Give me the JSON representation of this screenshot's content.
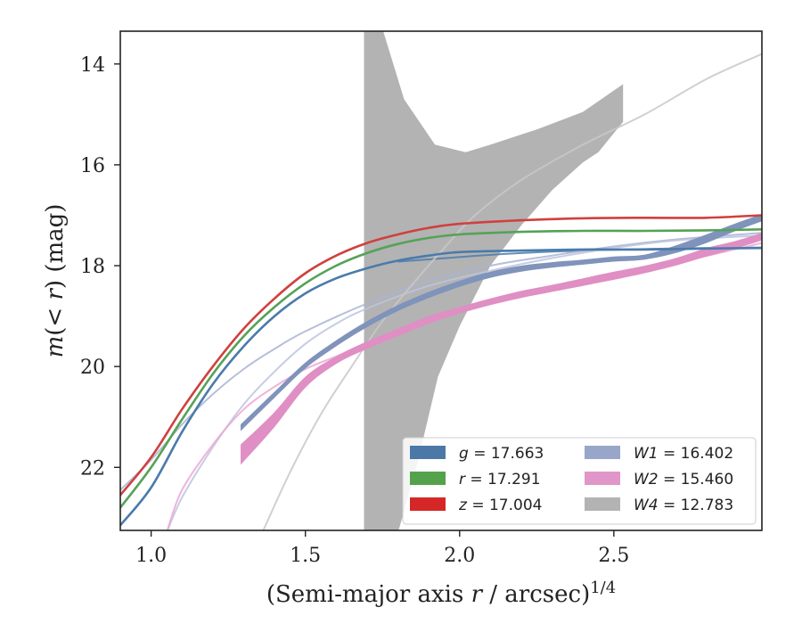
{
  "chart_data": {
    "type": "line",
    "xlabel": "(Semi-major axis r / arcsec)^{1/4}",
    "xlabel_parts": {
      "pre": "(Semi-major axis ",
      "var": "r",
      "mid": " / arcsec)",
      "sup": "1/4"
    },
    "ylabel": "m(< r) (mag)",
    "ylabel_parts": {
      "var": "m",
      "mid": "(< ",
      "var2": "r",
      "post": ") (mag)"
    },
    "xlim": [
      0.9,
      2.98
    ],
    "ylim": [
      23.25,
      13.35
    ],
    "y_inverted": true,
    "x_ticks": [
      1.0,
      1.5,
      2.0,
      2.5
    ],
    "x_tick_labels": [
      "1.0",
      "1.5",
      "2.0",
      "2.5"
    ],
    "y_ticks": [
      14,
      16,
      18,
      20,
      22
    ],
    "y_tick_labels": [
      "14",
      "16",
      "18",
      "20",
      "22"
    ],
    "grid": false,
    "legend_position": "lower-right",
    "legend": [
      {
        "band": "g",
        "value": "17.663",
        "color": "#4c78a8"
      },
      {
        "band": "r",
        "value": "17.291",
        "color": "#54a24b"
      },
      {
        "band": "z",
        "value": "17.004",
        "color": "#d62728"
      },
      {
        "band": "W1",
        "value": "16.402",
        "color": "#98a6c9"
      },
      {
        "band": "W2",
        "value": "15.460",
        "color": "#e096c8"
      },
      {
        "band": "W4",
        "value": "12.783",
        "color": "#b3b3b3"
      }
    ],
    "series": [
      {
        "name": "g",
        "color": "#4a7bab",
        "kind": "line",
        "points": [
          [
            0.9,
            23.15
          ],
          [
            1.0,
            22.4
          ],
          [
            1.1,
            21.3
          ],
          [
            1.2,
            20.35
          ],
          [
            1.3,
            19.6
          ],
          [
            1.4,
            19.0
          ],
          [
            1.5,
            18.55
          ],
          [
            1.6,
            18.25
          ],
          [
            1.7,
            18.05
          ],
          [
            1.8,
            17.9
          ],
          [
            1.9,
            17.8
          ],
          [
            2.0,
            17.73
          ],
          [
            2.2,
            17.7
          ],
          [
            2.4,
            17.68
          ],
          [
            2.6,
            17.68
          ],
          [
            2.8,
            17.66
          ],
          [
            2.98,
            17.65
          ]
        ]
      },
      {
        "name": "r",
        "color": "#55a257",
        "kind": "line",
        "points": [
          [
            0.9,
            22.8
          ],
          [
            1.0,
            22.0
          ],
          [
            1.1,
            21.05
          ],
          [
            1.2,
            20.15
          ],
          [
            1.3,
            19.4
          ],
          [
            1.4,
            18.82
          ],
          [
            1.5,
            18.35
          ],
          [
            1.6,
            18.0
          ],
          [
            1.7,
            17.75
          ],
          [
            1.8,
            17.57
          ],
          [
            1.9,
            17.45
          ],
          [
            2.0,
            17.38
          ],
          [
            2.2,
            17.33
          ],
          [
            2.4,
            17.31
          ],
          [
            2.6,
            17.31
          ],
          [
            2.8,
            17.3
          ],
          [
            2.98,
            17.28
          ]
        ]
      },
      {
        "name": "z",
        "color": "#d0403f",
        "kind": "line",
        "points": [
          [
            0.9,
            22.55
          ],
          [
            1.0,
            21.8
          ],
          [
            1.1,
            20.85
          ],
          [
            1.2,
            20.0
          ],
          [
            1.3,
            19.25
          ],
          [
            1.4,
            18.65
          ],
          [
            1.5,
            18.15
          ],
          [
            1.6,
            17.8
          ],
          [
            1.7,
            17.55
          ],
          [
            1.8,
            17.38
          ],
          [
            1.9,
            17.25
          ],
          [
            2.0,
            17.17
          ],
          [
            2.2,
            17.1
          ],
          [
            2.4,
            17.06
          ],
          [
            2.6,
            17.05
          ],
          [
            2.8,
            17.05
          ],
          [
            2.98,
            17.0
          ]
        ]
      },
      {
        "name": "W1",
        "color": "#7f93bb",
        "kind": "band",
        "lower": [
          [
            1.29,
            21.15
          ],
          [
            1.4,
            20.5
          ],
          [
            1.5,
            19.92
          ],
          [
            1.6,
            19.48
          ],
          [
            1.7,
            19.1
          ],
          [
            1.8,
            18.78
          ],
          [
            1.9,
            18.52
          ],
          [
            2.0,
            18.3
          ],
          [
            2.1,
            18.12
          ],
          [
            2.2,
            18.0
          ],
          [
            2.3,
            17.93
          ],
          [
            2.4,
            17.88
          ],
          [
            2.5,
            17.82
          ],
          [
            2.6,
            17.78
          ],
          [
            2.7,
            17.6
          ],
          [
            2.8,
            17.38
          ],
          [
            2.9,
            17.15
          ],
          [
            2.98,
            16.98
          ]
        ],
        "upper": [
          [
            1.29,
            21.28
          ],
          [
            1.4,
            20.62
          ],
          [
            1.5,
            20.04
          ],
          [
            1.6,
            19.6
          ],
          [
            1.7,
            19.22
          ],
          [
            1.8,
            18.9
          ],
          [
            1.9,
            18.64
          ],
          [
            2.0,
            18.42
          ],
          [
            2.1,
            18.24
          ],
          [
            2.2,
            18.12
          ],
          [
            2.3,
            18.04
          ],
          [
            2.4,
            17.98
          ],
          [
            2.5,
            17.92
          ],
          [
            2.6,
            17.88
          ],
          [
            2.7,
            17.75
          ],
          [
            2.8,
            17.55
          ],
          [
            2.9,
            17.3
          ],
          [
            2.98,
            17.12
          ]
        ]
      },
      {
        "name": "W2",
        "color": "#df8fc3",
        "kind": "band",
        "lower": [
          [
            1.29,
            21.55
          ],
          [
            1.4,
            20.9
          ],
          [
            1.5,
            20.2
          ],
          [
            1.6,
            19.8
          ],
          [
            1.7,
            19.5
          ],
          [
            1.8,
            19.25
          ],
          [
            1.9,
            19.0
          ],
          [
            2.0,
            18.82
          ],
          [
            2.1,
            18.65
          ],
          [
            2.2,
            18.5
          ],
          [
            2.3,
            18.38
          ],
          [
            2.4,
            18.25
          ],
          [
            2.5,
            18.12
          ],
          [
            2.6,
            18.0
          ],
          [
            2.7,
            17.85
          ],
          [
            2.8,
            17.65
          ],
          [
            2.9,
            17.5
          ],
          [
            2.98,
            17.35
          ]
        ],
        "upper": [
          [
            1.29,
            21.95
          ],
          [
            1.4,
            21.2
          ],
          [
            1.5,
            20.42
          ],
          [
            1.6,
            19.95
          ],
          [
            1.7,
            19.65
          ],
          [
            1.8,
            19.4
          ],
          [
            1.9,
            19.15
          ],
          [
            2.0,
            18.95
          ],
          [
            2.1,
            18.78
          ],
          [
            2.2,
            18.64
          ],
          [
            2.3,
            18.52
          ],
          [
            2.4,
            18.4
          ],
          [
            2.5,
            18.28
          ],
          [
            2.6,
            18.15
          ],
          [
            2.7,
            18.0
          ],
          [
            2.8,
            17.82
          ],
          [
            2.9,
            17.65
          ],
          [
            2.98,
            17.5
          ]
        ]
      },
      {
        "name": "W4",
        "color": "#b3b3b3",
        "kind": "band",
        "lower": [
          [
            1.69,
            13.3
          ],
          [
            1.75,
            13.3
          ],
          [
            1.82,
            14.7
          ],
          [
            1.92,
            15.6
          ],
          [
            2.02,
            15.75
          ],
          [
            2.1,
            15.6
          ],
          [
            2.25,
            15.3
          ],
          [
            2.4,
            14.95
          ],
          [
            2.53,
            14.4
          ]
        ],
        "upper": [
          [
            1.69,
            23.3
          ],
          [
            1.8,
            23.3
          ],
          [
            1.86,
            22.0
          ],
          [
            1.93,
            20.2
          ],
          [
            2.0,
            19.2
          ],
          [
            2.1,
            18.0
          ],
          [
            2.2,
            17.2
          ],
          [
            2.3,
            16.5
          ],
          [
            2.4,
            15.95
          ],
          [
            2.45,
            15.75
          ],
          [
            2.53,
            15.15
          ]
        ]
      }
    ],
    "extrapolations": [
      {
        "band": "g",
        "color": "#4a7bab",
        "points": [
          [
            1.8,
            17.92
          ],
          [
            2.2,
            17.75
          ],
          [
            2.6,
            17.67
          ],
          [
            2.98,
            17.64
          ]
        ]
      },
      {
        "band": "W1",
        "color": "#a9b4d3",
        "points": [
          [
            0.9,
            22.45
          ],
          [
            1.0,
            21.85
          ],
          [
            1.1,
            21.15
          ],
          [
            1.2,
            20.55
          ],
          [
            1.3,
            20.05
          ],
          [
            1.4,
            19.65
          ],
          [
            1.5,
            19.3
          ],
          [
            1.7,
            18.75
          ],
          [
            1.9,
            18.3
          ],
          [
            2.1,
            18.0
          ],
          [
            2.3,
            17.8
          ],
          [
            2.5,
            17.62
          ],
          [
            2.7,
            17.48
          ],
          [
            2.98,
            17.35
          ]
        ]
      },
      {
        "band": "W1",
        "color": "#bcc4de",
        "points": [
          [
            1.05,
            23.3
          ],
          [
            1.1,
            22.6
          ],
          [
            1.2,
            21.6
          ],
          [
            1.3,
            20.75
          ],
          [
            1.4,
            20.1
          ],
          [
            1.5,
            19.55
          ],
          [
            1.6,
            19.15
          ],
          [
            1.7,
            18.85
          ],
          [
            1.9,
            18.4
          ],
          [
            2.1,
            18.1
          ],
          [
            2.3,
            17.85
          ],
          [
            2.5,
            17.65
          ],
          [
            2.7,
            17.5
          ],
          [
            2.98,
            17.4
          ]
        ]
      },
      {
        "band": "W2",
        "color": "#eca6d3",
        "points": [
          [
            1.05,
            23.3
          ],
          [
            1.1,
            22.45
          ],
          [
            1.2,
            21.55
          ],
          [
            1.3,
            20.85
          ],
          [
            1.4,
            20.4
          ],
          [
            1.5,
            20.05
          ],
          [
            1.6,
            19.8
          ],
          [
            1.7,
            19.55
          ],
          [
            1.9,
            19.12
          ],
          [
            2.1,
            18.75
          ],
          [
            2.3,
            18.45
          ],
          [
            2.5,
            18.2
          ],
          [
            2.7,
            17.95
          ],
          [
            2.98,
            17.55
          ]
        ]
      },
      {
        "band": "W4",
        "color": "#c8c8c8",
        "points": [
          [
            1.36,
            23.3
          ],
          [
            1.45,
            22.1
          ],
          [
            1.55,
            20.95
          ],
          [
            1.65,
            20.0
          ],
          [
            1.75,
            19.1
          ],
          [
            1.85,
            18.35
          ],
          [
            1.95,
            17.65
          ],
          [
            2.05,
            17.0
          ],
          [
            2.2,
            16.3
          ],
          [
            2.4,
            15.6
          ],
          [
            2.6,
            15.0
          ],
          [
            2.8,
            14.3
          ],
          [
            2.98,
            13.8
          ]
        ]
      }
    ]
  }
}
